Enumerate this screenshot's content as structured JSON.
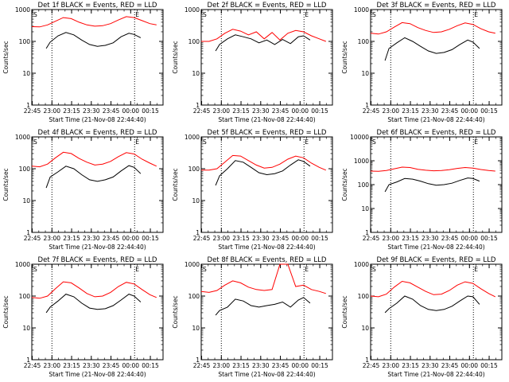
{
  "xticks": [
    "22:45",
    "23:00",
    "23:15",
    "23:30",
    "23:45",
    "00:00",
    "00:15"
  ],
  "xlabel": "Start Time (21-Nov-08 22:44:40)",
  "ylabel": "Counts/sec",
  "colors": {
    "events": "#000000",
    "lld": "#ff0000"
  },
  "chart_data": [
    {
      "type": "line",
      "title": "Det 1f BLACK = Events, RED = LLD",
      "x_range_minutes": [
        0,
        100
      ],
      "ylim": [
        1,
        1000
      ],
      "yscale": "log",
      "yticks": [
        "1",
        "10",
        "100",
        "1000"
      ],
      "markers": {
        "start_label": "S",
        "end_label": "E",
        "dotted_lines_at": [
          "23:00",
          "00:03"
        ]
      },
      "series": [
        {
          "name": "BLACK = Events",
          "x": [
            11,
            14,
            20,
            26,
            32,
            38,
            44,
            50,
            56,
            62,
            68,
            74,
            78,
            83
          ],
          "values": [
            60,
            95,
            150,
            190,
            160,
            110,
            80,
            70,
            75,
            90,
            140,
            180,
            165,
            130
          ]
        },
        {
          "name": "RED = LLD",
          "x": [
            0,
            6,
            12,
            18,
            24,
            30,
            36,
            42,
            48,
            54,
            60,
            66,
            72,
            78,
            84,
            90,
            95
          ],
          "values": [
            290,
            285,
            330,
            430,
            560,
            520,
            400,
            330,
            300,
            310,
            360,
            470,
            600,
            560,
            450,
            360,
            330
          ]
        }
      ]
    },
    {
      "type": "line",
      "title": "Det 2f BLACK = Events, RED = LLD",
      "x_range_minutes": [
        0,
        100
      ],
      "ylim": [
        1,
        1000
      ],
      "yscale": "log",
      "yticks": [
        "1",
        "10",
        "100",
        "1000"
      ],
      "markers": {
        "start_label": "S",
        "end_label": "E",
        "dotted_lines_at": [
          "23:00",
          "00:03"
        ]
      },
      "series": [
        {
          "name": "BLACK = Events",
          "x": [
            11,
            14,
            20,
            26,
            32,
            38,
            44,
            50,
            56,
            62,
            68,
            74,
            78,
            83
          ],
          "values": [
            50,
            80,
            120,
            160,
            140,
            120,
            90,
            110,
            80,
            115,
            85,
            140,
            150,
            110
          ]
        },
        {
          "name": "RED = LLD",
          "x": [
            0,
            6,
            12,
            18,
            24,
            30,
            36,
            42,
            48,
            54,
            60,
            66,
            72,
            78,
            84,
            90,
            95
          ],
          "values": [
            100,
            100,
            120,
            180,
            240,
            210,
            160,
            200,
            120,
            190,
            110,
            180,
            220,
            200,
            150,
            120,
            100
          ]
        }
      ]
    },
    {
      "type": "line",
      "title": "Det 3f BLACK = Events, RED = LLD",
      "x_range_minutes": [
        0,
        100
      ],
      "ylim": [
        1,
        1000
      ],
      "yscale": "log",
      "yticks": [
        "1",
        "10",
        "100",
        "1000"
      ],
      "markers": {
        "start_label": "S",
        "end_label": "E",
        "dotted_lines_at": [
          "23:00",
          "00:03"
        ]
      },
      "series": [
        {
          "name": "BLACK = Events",
          "x": [
            11,
            14,
            20,
            26,
            32,
            38,
            44,
            50,
            56,
            62,
            68,
            74,
            78,
            83
          ],
          "values": [
            25,
            60,
            90,
            130,
            100,
            70,
            50,
            42,
            45,
            55,
            80,
            110,
            95,
            60
          ]
        },
        {
          "name": "RED = LLD",
          "x": [
            0,
            6,
            12,
            18,
            24,
            30,
            36,
            42,
            48,
            54,
            60,
            66,
            72,
            78,
            84,
            90,
            95
          ],
          "values": [
            180,
            170,
            200,
            280,
            390,
            360,
            270,
            220,
            190,
            200,
            240,
            310,
            380,
            340,
            250,
            200,
            180
          ]
        }
      ]
    },
    {
      "type": "line",
      "title": "Det 4f BLACK = Events, RED = LLD",
      "x_range_minutes": [
        0,
        100
      ],
      "ylim": [
        1,
        1000
      ],
      "yscale": "log",
      "yticks": [
        "1",
        "10",
        "100",
        "1000"
      ],
      "markers": {
        "start_label": "S",
        "end_label": "E",
        "dotted_lines_at": [
          "23:00",
          "00:03"
        ]
      },
      "series": [
        {
          "name": "BLACK = Events",
          "x": [
            11,
            14,
            20,
            26,
            32,
            38,
            44,
            50,
            56,
            62,
            68,
            74,
            78,
            83
          ],
          "values": [
            25,
            55,
            80,
            120,
            100,
            65,
            45,
            40,
            45,
            55,
            85,
            125,
            110,
            70
          ]
        },
        {
          "name": "RED = LLD",
          "x": [
            0,
            6,
            12,
            18,
            24,
            30,
            36,
            42,
            48,
            54,
            60,
            66,
            72,
            78,
            84,
            90,
            95
          ],
          "values": [
            120,
            115,
            140,
            220,
            330,
            300,
            210,
            160,
            130,
            140,
            170,
            240,
            320,
            290,
            200,
            150,
            120
          ]
        }
      ]
    },
    {
      "type": "line",
      "title": "Det 5f BLACK = Events, RED = LLD",
      "x_range_minutes": [
        0,
        100
      ],
      "ylim": [
        1,
        1000
      ],
      "yscale": "log",
      "yticks": [
        "1",
        "10",
        "100",
        "1000"
      ],
      "markers": {
        "start_label": "S",
        "end_label": "E",
        "dotted_lines_at": [
          "23:00",
          "00:03"
        ]
      },
      "series": [
        {
          "name": "BLACK = Events",
          "x": [
            11,
            14,
            20,
            26,
            32,
            38,
            44,
            50,
            56,
            62,
            68,
            74,
            78,
            83
          ],
          "values": [
            30,
            60,
            100,
            180,
            160,
            110,
            75,
            65,
            70,
            85,
            130,
            190,
            170,
            120
          ]
        },
        {
          "name": "RED = LLD",
          "x": [
            0,
            6,
            12,
            18,
            24,
            30,
            36,
            42,
            48,
            54,
            60,
            66,
            72,
            78,
            84,
            90,
            95
          ],
          "values": [
            90,
            90,
            100,
            160,
            260,
            250,
            180,
            130,
            105,
            110,
            140,
            200,
            250,
            220,
            150,
            110,
            90
          ]
        }
      ]
    },
    {
      "type": "line",
      "title": "Det 6f BLACK = Events, RED = LLD",
      "x_range_minutes": [
        0,
        100
      ],
      "ylim": [
        1,
        10000
      ],
      "yscale": "log",
      "yticks": [
        "1",
        "10",
        "100",
        "1000",
        "10000"
      ],
      "markers": {
        "start_label": "S",
        "end_label": "E",
        "dotted_lines_at": [
          "23:00",
          "00:03"
        ]
      },
      "series": [
        {
          "name": "BLACK = Events",
          "x": [
            11,
            14,
            20,
            26,
            32,
            38,
            44,
            50,
            56,
            62,
            68,
            74,
            78,
            83
          ],
          "values": [
            50,
            100,
            130,
            180,
            170,
            140,
            110,
            95,
            100,
            115,
            150,
            190,
            180,
            140
          ]
        },
        {
          "name": "RED = LLD",
          "x": [
            0,
            6,
            12,
            18,
            24,
            30,
            36,
            42,
            48,
            54,
            60,
            66,
            72,
            78,
            84,
            90,
            95
          ],
          "values": [
            370,
            360,
            390,
            460,
            540,
            520,
            440,
            400,
            380,
            390,
            420,
            480,
            520,
            490,
            430,
            390,
            370
          ]
        }
      ]
    },
    {
      "type": "line",
      "title": "Det 7f BLACK = Events, RED = LLD",
      "x_range_minutes": [
        0,
        100
      ],
      "ylim": [
        1,
        1000
      ],
      "yscale": "log",
      "yticks": [
        "1",
        "10",
        "100",
        "1000"
      ],
      "markers": {
        "start_label": "S",
        "end_label": "E",
        "dotted_lines_at": [
          "23:00",
          "00:03"
        ]
      },
      "series": [
        {
          "name": "BLACK = Events",
          "x": [
            11,
            14,
            20,
            26,
            32,
            38,
            44,
            50,
            56,
            62,
            68,
            74,
            78,
            83
          ],
          "values": [
            30,
            45,
            70,
            115,
            95,
            60,
            42,
            38,
            40,
            50,
            75,
            115,
            100,
            65
          ]
        },
        {
          "name": "RED = LLD",
          "x": [
            0,
            6,
            12,
            18,
            24,
            30,
            36,
            42,
            48,
            54,
            60,
            66,
            72,
            78,
            84,
            90,
            95
          ],
          "values": [
            90,
            85,
            100,
            170,
            280,
            260,
            180,
            120,
            95,
            100,
            130,
            200,
            270,
            240,
            160,
            110,
            90
          ]
        }
      ]
    },
    {
      "type": "line",
      "title": "Det 8f BLACK = Events, RED = LLD",
      "x_range_minutes": [
        0,
        100
      ],
      "ylim": [
        1,
        1000
      ],
      "yscale": "log",
      "yticks": [
        "1",
        "10",
        "100",
        "1000"
      ],
      "markers": {
        "start_label": "S",
        "end_label": "E",
        "dotted_lines_at": [
          "23:00",
          "00:03"
        ]
      },
      "series": [
        {
          "name": "BLACK = Events",
          "x": [
            11,
            14,
            20,
            26,
            32,
            38,
            44,
            50,
            56,
            62,
            68,
            74,
            78,
            83
          ],
          "values": [
            25,
            35,
            45,
            80,
            70,
            50,
            45,
            50,
            55,
            65,
            45,
            75,
            90,
            60
          ]
        },
        {
          "name": "RED = LLD",
          "x": [
            0,
            6,
            12,
            18,
            24,
            30,
            36,
            42,
            48,
            54,
            60,
            66,
            72,
            78,
            84,
            90,
            95
          ],
          "values": [
            140,
            130,
            150,
            220,
            300,
            260,
            190,
            160,
            150,
            160,
            1000,
            1000,
            200,
            220,
            160,
            140,
            120
          ]
        }
      ]
    },
    {
      "type": "line",
      "title": "Det 9f BLACK = Events, RED = LLD",
      "x_range_minutes": [
        0,
        100
      ],
      "ylim": [
        1,
        1000
      ],
      "yscale": "log",
      "yticks": [
        "1",
        "10",
        "100",
        "1000"
      ],
      "markers": {
        "start_label": "S",
        "end_label": "E",
        "dotted_lines_at": [
          "23:00",
          "00:03"
        ]
      },
      "series": [
        {
          "name": "BLACK = Events",
          "x": [
            11,
            14,
            20,
            26,
            32,
            38,
            44,
            50,
            56,
            62,
            68,
            74,
            78,
            83
          ],
          "values": [
            30,
            40,
            60,
            100,
            80,
            50,
            38,
            35,
            38,
            48,
            70,
            100,
            95,
            55
          ]
        },
        {
          "name": "RED = LLD",
          "x": [
            0,
            6,
            12,
            18,
            24,
            30,
            36,
            42,
            48,
            54,
            60,
            66,
            72,
            78,
            84,
            90,
            95
          ],
          "values": [
            100,
            95,
            115,
            190,
            290,
            260,
            190,
            140,
            110,
            115,
            150,
            220,
            280,
            250,
            170,
            120,
            95
          ]
        }
      ]
    }
  ]
}
